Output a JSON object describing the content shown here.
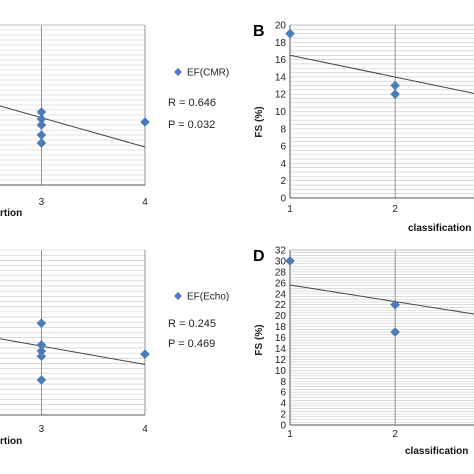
{
  "chart_data": [
    {
      "id": "A",
      "type": "scatter",
      "panel_letter": "",
      "xlabel": "rtion",
      "ylabel": "",
      "xlim": [
        2.6,
        4.0
      ],
      "ylim": [
        0,
        16
      ],
      "x_ticks": [
        3,
        4
      ],
      "y_ticks": [],
      "series": [
        {
          "name": "EF(CMR)",
          "color": "#4a7ebb",
          "points": [
            [
              3,
              7.3
            ],
            [
              3,
              6.6
            ],
            [
              3,
              6.0
            ],
            [
              3,
              5.0
            ],
            [
              3,
              4.2
            ],
            [
              4,
              6.3
            ]
          ]
        }
      ],
      "trendline": [
        [
          2.6,
          7.9
        ],
        [
          4.0,
          3.8
        ]
      ],
      "stats": [
        "R = 0.646",
        "P = 0.032"
      ]
    },
    {
      "id": "B",
      "type": "scatter",
      "panel_letter": "B",
      "xlabel": "classification",
      "ylabel": "FS (%)",
      "xlim": [
        1,
        2.75
      ],
      "ylim": [
        0,
        20
      ],
      "x_ticks": [
        1,
        2
      ],
      "y_ticks": [
        0,
        2,
        4,
        6,
        8,
        10,
        12,
        14,
        16,
        18,
        20
      ],
      "series": [
        {
          "name": "",
          "color": "#4a7ebb",
          "points": [
            [
              1,
              19
            ],
            [
              2,
              13
            ],
            [
              2,
              12
            ]
          ]
        }
      ],
      "trendline": [
        [
          1,
          16.5
        ],
        [
          2.75,
          12.1
        ]
      ],
      "stats": []
    },
    {
      "id": "C",
      "type": "scatter",
      "panel_letter": "",
      "xlabel": "rtion",
      "ylabel": "",
      "xlim": [
        2.6,
        4.0
      ],
      "ylim": [
        0,
        16
      ],
      "x_ticks": [
        3,
        4
      ],
      "y_ticks": [],
      "series": [
        {
          "name": "EF(Echo)",
          "color": "#4a7ebb",
          "points": [
            [
              3,
              8.9
            ],
            [
              3,
              6.8
            ],
            [
              3,
              6.2
            ],
            [
              3,
              5.7
            ],
            [
              3,
              3.4
            ],
            [
              4,
              5.9
            ]
          ]
        }
      ],
      "trendline": [
        [
          2.6,
          7.4
        ],
        [
          4.0,
          4.9
        ]
      ],
      "stats": [
        "R = 0.245",
        "P = 0.469"
      ]
    },
    {
      "id": "D",
      "type": "scatter",
      "panel_letter": "D",
      "xlabel": "classification",
      "ylabel": "FS (%)",
      "xlim": [
        1,
        2.75
      ],
      "ylim": [
        0,
        32
      ],
      "x_ticks": [
        1,
        2
      ],
      "y_ticks": [
        0,
        2,
        4,
        6,
        8,
        10,
        12,
        14,
        16,
        18,
        20,
        22,
        24,
        26,
        28,
        30,
        32
      ],
      "series": [
        {
          "name": "",
          "color": "#4a7ebb",
          "points": [
            [
              1,
              30
            ],
            [
              2,
              22
            ],
            [
              2,
              22
            ],
            [
              2,
              17
            ]
          ]
        }
      ],
      "trendline": [
        [
          1,
          25.6
        ],
        [
          2.75,
          20.3
        ]
      ],
      "stats": []
    }
  ]
}
